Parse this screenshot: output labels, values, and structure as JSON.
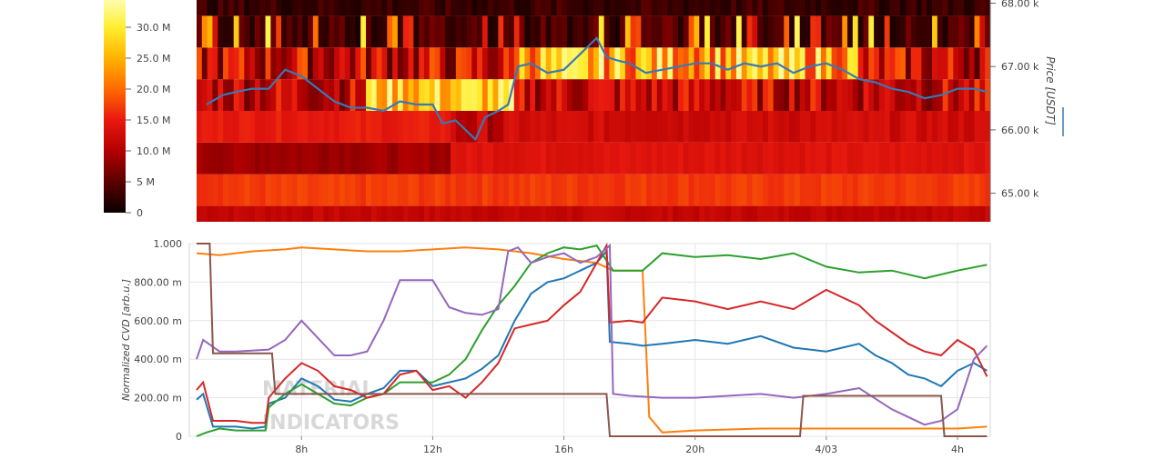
{
  "chart_data": [
    {
      "type": "heatmap",
      "title": "",
      "colorbar": {
        "ticks": [
          {
            "label": "0",
            "value": 0
          },
          {
            "label": "5 M",
            "value": 5
          },
          {
            "label": "10.0 M",
            "value": 10
          },
          {
            "label": "15.0 M",
            "value": 15
          },
          {
            "label": "20.0 M",
            "value": 20
          },
          {
            "label": "25.0 M",
            "value": 25
          },
          {
            "label": "30.0 M",
            "value": 30
          }
        ],
        "range": [
          0,
          35
        ],
        "colors": [
          "#0a0000",
          "#5a0000",
          "#b30000",
          "#e8190f",
          "#ff6a00",
          "#ffb300",
          "#ffee30",
          "#ffffc0"
        ]
      },
      "y_right_label": "Price [USDT]",
      "y_ticks": [
        {
          "label": "65.00 k",
          "value": 65000
        },
        {
          "label": "66.00 k",
          "value": 66000
        },
        {
          "label": "67.00 k",
          "value": 67000
        },
        {
          "label": "68.00 k",
          "value": 68000
        }
      ],
      "ylim": [
        64550,
        68050
      ],
      "price_bands": [
        {
          "low": 64550,
          "high": 64800,
          "base": 11.5
        },
        {
          "low": 64800,
          "high": 65300,
          "base": 17.0
        },
        {
          "low": 65300,
          "high": 65800,
          "base": 11.0
        },
        {
          "low": 65800,
          "high": 66300,
          "base": 12.5
        },
        {
          "low": 66300,
          "high": 66800,
          "base": 9.0
        },
        {
          "low": 66800,
          "high": 67300,
          "base": 8.0
        },
        {
          "low": 67300,
          "high": 67800,
          "base": 2.0
        },
        {
          "low": 67800,
          "high": 68050,
          "base": 1.5
        }
      ],
      "series": [
        {
          "name": "",
          "color": "#3a78b5",
          "x": [
            5.1,
            5.6,
            6.0,
            6.5,
            7.0,
            7.5,
            8.0,
            8.5,
            9.0,
            9.5,
            10.0,
            10.5,
            11.0,
            11.5,
            12.0,
            12.3,
            12.7,
            13.0,
            13.3,
            13.6,
            14.0,
            14.3,
            14.6,
            15.0,
            15.5,
            16.0,
            16.5,
            17.0,
            17.3,
            17.6,
            18.0,
            18.5,
            19.0,
            19.5,
            20.0,
            20.5,
            21.0,
            21.5,
            22.0,
            22.5,
            23.0,
            23.5,
            24.0,
            24.5,
            25.0,
            25.5,
            26.0,
            26.5,
            27.0,
            27.5,
            28.0,
            28.5,
            28.9
          ],
          "y": [
            66400,
            66550,
            66600,
            66650,
            66650,
            66950,
            66850,
            66650,
            66450,
            66350,
            66350,
            66300,
            66450,
            66400,
            66400,
            66100,
            66150,
            66000,
            65850,
            66200,
            66300,
            66400,
            67000,
            67050,
            66900,
            66950,
            67200,
            67450,
            67150,
            67100,
            67050,
            66900,
            66950,
            67000,
            67050,
            67050,
            66950,
            67050,
            67000,
            67050,
            66900,
            67000,
            67050,
            66950,
            66800,
            66750,
            66650,
            66600,
            66500,
            66550,
            66650,
            66650,
            66600
          ]
        }
      ]
    },
    {
      "type": "line",
      "title": "",
      "ylabel": "Normalized CVD [arb.u.]",
      "xlabel": "",
      "y_ticks": [
        {
          "label": "0",
          "value": 0
        },
        {
          "label": "200.00 m",
          "value": 0.2
        },
        {
          "label": "400.00 m",
          "value": 0.4
        },
        {
          "label": "600.00 m",
          "value": 0.6
        },
        {
          "label": "800.00 m",
          "value": 0.8
        },
        {
          "label": "1.000",
          "value": 1.0
        }
      ],
      "x_ticks": [
        {
          "label": "8h",
          "value": 8
        },
        {
          "label": "12h",
          "value": 12
        },
        {
          "label": "16h",
          "value": 16
        },
        {
          "label": "20h",
          "value": 20
        },
        {
          "label": "4/03",
          "value": 24
        },
        {
          "label": "4h",
          "value": 28
        }
      ],
      "xlim": [
        4.8,
        29.0
      ],
      "ylim": [
        0,
        1.0
      ],
      "grid": true,
      "watermark": "MATERIAL INDICATORS",
      "series": [
        {
          "name": "",
          "color": "#ff7f0e",
          "x": [
            4.8,
            5.5,
            6.5,
            7.5,
            8.0,
            9.0,
            10.0,
            11.0,
            12.0,
            13.0,
            14.0,
            15.0,
            16.0,
            17.0,
            17.5,
            18.0,
            18.4,
            18.6,
            19.0,
            20.0,
            22.0,
            24.0,
            26.0,
            28.0,
            28.9
          ],
          "y": [
            0.95,
            0.94,
            0.96,
            0.97,
            0.98,
            0.97,
            0.96,
            0.96,
            0.97,
            0.98,
            0.97,
            0.95,
            0.92,
            0.9,
            0.86,
            0.86,
            0.86,
            0.1,
            0.02,
            0.03,
            0.04,
            0.04,
            0.04,
            0.04,
            0.05
          ]
        },
        {
          "name": "",
          "color": "#1f77b4",
          "x": [
            4.8,
            5.0,
            5.3,
            6.0,
            6.5,
            6.9,
            7.0,
            7.5,
            8.0,
            8.5,
            9.0,
            9.5,
            10.0,
            10.5,
            11.0,
            11.5,
            12.0,
            12.5,
            13.0,
            13.5,
            14.0,
            14.5,
            15.0,
            15.5,
            16.0,
            16.5,
            17.0,
            17.3,
            17.4,
            18.0,
            18.4,
            19.0,
            20.0,
            21.0,
            22.0,
            23.0,
            24.0,
            25.0,
            25.5,
            26.0,
            26.5,
            27.0,
            27.5,
            28.0,
            28.5,
            28.9
          ],
          "y": [
            0.19,
            0.22,
            0.05,
            0.05,
            0.04,
            0.05,
            0.17,
            0.2,
            0.3,
            0.26,
            0.19,
            0.18,
            0.22,
            0.25,
            0.34,
            0.34,
            0.26,
            0.28,
            0.3,
            0.35,
            0.42,
            0.6,
            0.74,
            0.8,
            0.82,
            0.86,
            0.9,
            0.96,
            0.49,
            0.48,
            0.47,
            0.48,
            0.5,
            0.48,
            0.52,
            0.46,
            0.44,
            0.48,
            0.42,
            0.38,
            0.32,
            0.3,
            0.26,
            0.34,
            0.38,
            0.34
          ]
        },
        {
          "name": "",
          "color": "#2ca02c",
          "x": [
            4.8,
            5.1,
            5.5,
            6.0,
            6.9,
            7.0,
            7.5,
            8.0,
            8.5,
            9.0,
            9.5,
            10.0,
            10.5,
            11.0,
            11.5,
            12.0,
            12.5,
            13.0,
            13.5,
            14.0,
            14.5,
            15.0,
            15.5,
            16.0,
            16.5,
            17.0,
            17.5,
            18.0,
            18.4,
            19.0,
            20.0,
            21.0,
            22.0,
            23.0,
            24.0,
            25.0,
            26.0,
            27.0,
            28.0,
            28.9
          ],
          "y": [
            0.0,
            0.02,
            0.04,
            0.03,
            0.03,
            0.15,
            0.22,
            0.27,
            0.22,
            0.17,
            0.16,
            0.2,
            0.22,
            0.28,
            0.28,
            0.28,
            0.32,
            0.4,
            0.55,
            0.68,
            0.78,
            0.9,
            0.95,
            0.98,
            0.97,
            0.99,
            0.86,
            0.86,
            0.86,
            0.95,
            0.93,
            0.94,
            0.92,
            0.95,
            0.88,
            0.85,
            0.86,
            0.82,
            0.86,
            0.89
          ]
        },
        {
          "name": "",
          "color": "#d62728",
          "x": [
            4.8,
            5.0,
            5.3,
            6.0,
            6.5,
            6.9,
            7.0,
            7.5,
            8.0,
            8.5,
            9.0,
            9.5,
            10.0,
            10.5,
            11.0,
            11.5,
            12.0,
            12.5,
            13.0,
            13.5,
            14.0,
            14.5,
            15.0,
            15.5,
            16.0,
            16.5,
            17.0,
            17.3,
            17.4,
            18.0,
            18.4,
            19.0,
            20.0,
            21.0,
            22.0,
            23.0,
            24.0,
            25.0,
            25.5,
            26.0,
            26.5,
            27.0,
            27.5,
            28.0,
            28.5,
            28.9
          ],
          "y": [
            0.24,
            0.28,
            0.08,
            0.08,
            0.07,
            0.07,
            0.2,
            0.3,
            0.38,
            0.34,
            0.26,
            0.24,
            0.2,
            0.22,
            0.32,
            0.34,
            0.24,
            0.26,
            0.2,
            0.28,
            0.38,
            0.56,
            0.58,
            0.6,
            0.68,
            0.75,
            0.9,
            0.99,
            0.59,
            0.6,
            0.59,
            0.72,
            0.7,
            0.66,
            0.7,
            0.66,
            0.76,
            0.68,
            0.6,
            0.54,
            0.48,
            0.44,
            0.42,
            0.5,
            0.45,
            0.31
          ]
        },
        {
          "name": "",
          "color": "#9467bd",
          "x": [
            4.8,
            5.0,
            5.5,
            6.0,
            7.0,
            7.5,
            8.0,
            9.0,
            9.5,
            10.0,
            10.5,
            11.0,
            12.0,
            12.5,
            13.0,
            13.5,
            14.0,
            14.3,
            14.6,
            15.0,
            15.5,
            16.0,
            16.5,
            17.0,
            17.4,
            17.5,
            18.0,
            19.0,
            20.0,
            21.0,
            22.0,
            23.0,
            24.0,
            25.0,
            26.0,
            26.5,
            27.0,
            27.5,
            28.0,
            28.5,
            28.9
          ],
          "y": [
            0.4,
            0.5,
            0.44,
            0.44,
            0.45,
            0.5,
            0.6,
            0.42,
            0.42,
            0.44,
            0.6,
            0.81,
            0.81,
            0.67,
            0.64,
            0.63,
            0.66,
            0.96,
            0.98,
            0.9,
            0.93,
            0.95,
            0.9,
            0.93,
            0.99,
            0.22,
            0.21,
            0.2,
            0.2,
            0.21,
            0.22,
            0.2,
            0.22,
            0.25,
            0.14,
            0.1,
            0.06,
            0.08,
            0.14,
            0.4,
            0.47
          ]
        },
        {
          "name": "",
          "color": "#8c564b",
          "x": [
            4.8,
            5.0,
            5.2,
            5.3,
            6.0,
            7.0,
            7.1,
            7.2,
            8.0,
            9.0,
            10.0,
            11.0,
            12.0,
            13.0,
            14.0,
            15.0,
            16.0,
            17.0,
            17.3,
            17.4,
            17.5,
            18.0,
            19.0,
            20.0,
            21.0,
            22.0,
            23.0,
            23.2,
            23.3,
            24.0,
            25.0,
            26.0,
            27.0,
            27.5,
            27.6,
            28.0,
            28.5,
            28.9
          ],
          "y": [
            1.0,
            1.0,
            1.0,
            0.43,
            0.43,
            0.43,
            0.43,
            0.22,
            0.22,
            0.22,
            0.22,
            0.22,
            0.22,
            0.22,
            0.22,
            0.22,
            0.22,
            0.22,
            0.22,
            0.0,
            0.0,
            0.0,
            0.0,
            0.0,
            0.0,
            0.0,
            0.0,
            0.0,
            0.21,
            0.21,
            0.21,
            0.21,
            0.21,
            0.21,
            0.0,
            0.0,
            0.0,
            0.0
          ]
        }
      ]
    }
  ]
}
